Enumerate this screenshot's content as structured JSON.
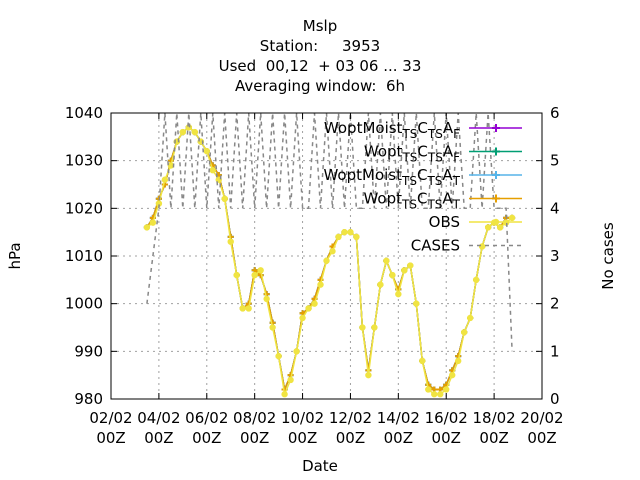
{
  "chart_data": {
    "type": "line",
    "title_lines": [
      "Mslp",
      "Station:     3953",
      "Used  00,12  + 03 06 ... 33",
      "Averaging window:  6h"
    ],
    "xlabel": "Date",
    "ylabel": "hPa",
    "y2label": "No cases",
    "ylim": [
      980,
      1040
    ],
    "y2lim": [
      0,
      6
    ],
    "xlim": [
      0,
      18
    ],
    "x_unit": "days since 02/02 00Z",
    "x_ticks": [
      {
        "x": 0,
        "l1": "02/02",
        "l2": "00Z"
      },
      {
        "x": 2,
        "l1": "04/02",
        "l2": "00Z"
      },
      {
        "x": 4,
        "l1": "06/02",
        "l2": "00Z"
      },
      {
        "x": 6,
        "l1": "08/02",
        "l2": "00Z"
      },
      {
        "x": 8,
        "l1": "10/02",
        "l2": "00Z"
      },
      {
        "x": 10,
        "l1": "12/02",
        "l2": "00Z"
      },
      {
        "x": 12,
        "l1": "14/02",
        "l2": "00Z"
      },
      {
        "x": 14,
        "l1": "16/02",
        "l2": "00Z"
      },
      {
        "x": 16,
        "l1": "18/02",
        "l2": "00Z"
      },
      {
        "x": 18,
        "l1": "20/02",
        "l2": "00Z"
      }
    ],
    "y_ticks": [
      980,
      990,
      1000,
      1010,
      1020,
      1030,
      1040
    ],
    "y2_ticks": [
      0,
      1,
      2,
      3,
      4,
      5,
      6
    ],
    "legend_position": "top-right",
    "x": [
      1.5,
      1.75,
      2.0,
      2.25,
      2.5,
      2.75,
      3.0,
      3.25,
      3.5,
      3.75,
      4.0,
      4.25,
      4.5,
      4.75,
      5.0,
      5.25,
      5.5,
      5.75,
      6.0,
      6.25,
      6.5,
      6.75,
      7.0,
      7.25,
      7.5,
      7.75,
      8.0,
      8.25,
      8.5,
      8.75,
      9.0,
      9.25,
      9.5,
      9.75,
      10.0,
      10.25,
      10.5,
      10.75,
      11.0,
      11.25,
      11.5,
      11.75,
      12.0,
      12.25,
      12.5,
      12.75,
      13.0,
      13.25,
      13.5,
      13.75,
      14.0,
      14.25,
      14.5,
      14.75,
      15.0,
      15.25,
      15.5,
      15.75,
      16.0,
      16.25,
      16.5,
      16.75
    ],
    "series": [
      {
        "name": "WoptMoist_{TS}C_{TS}A_F",
        "color": "#9400d3",
        "marker": "plus",
        "values": [
          1016,
          1018,
          1022,
          1025,
          1030,
          1034,
          1036,
          1037,
          1036,
          1034,
          1032,
          1029,
          1027,
          1022,
          1014,
          1006,
          999,
          1000,
          1007,
          1006,
          1002,
          996,
          989,
          982,
          985,
          990,
          998,
          999,
          1001,
          1005,
          1009,
          1012,
          1014,
          1015,
          1015,
          1014,
          995,
          986,
          995,
          1004,
          1009,
          1006,
          1003,
          1007,
          1008,
          1000,
          988,
          983,
          982,
          982,
          983,
          986,
          989,
          994,
          997,
          1005,
          1012,
          1016,
          1017,
          1016,
          1018,
          1018
        ]
      },
      {
        "name": "Wopt_{TS}C_{TS}A_F",
        "color": "#009e73",
        "marker": "plus",
        "values": [
          1016,
          1018,
          1022,
          1025,
          1030,
          1034,
          1036,
          1037,
          1036,
          1034,
          1032,
          1029,
          1027,
          1022,
          1014,
          1006,
          999,
          1000,
          1007,
          1006,
          1002,
          996,
          989,
          982,
          985,
          990,
          998,
          999,
          1001,
          1005,
          1009,
          1012,
          1014,
          1015,
          1015,
          1014,
          995,
          986,
          995,
          1004,
          1009,
          1006,
          1003,
          1007,
          1008,
          1000,
          988,
          983,
          982,
          982,
          983,
          986,
          989,
          994,
          997,
          1005,
          1012,
          1016,
          1017,
          1016,
          1018,
          1018
        ]
      },
      {
        "name": "WoptMoist_{TS}C_{TS}A_T",
        "color": "#56b4e9",
        "marker": "plus",
        "values": [
          1016,
          1018,
          1022,
          1025,
          1030,
          1034,
          1036,
          1037,
          1036,
          1034,
          1032,
          1029,
          1027,
          1022,
          1014,
          1006,
          999,
          1000,
          1007,
          1006,
          1002,
          996,
          989,
          982,
          985,
          990,
          998,
          999,
          1001,
          1005,
          1009,
          1012,
          1014,
          1015,
          1015,
          1014,
          995,
          986,
          995,
          1004,
          1009,
          1006,
          1003,
          1007,
          1008,
          1000,
          988,
          983,
          982,
          982,
          983,
          986,
          989,
          994,
          997,
          1005,
          1012,
          1016,
          1017,
          1016,
          1018,
          1018
        ]
      },
      {
        "name": "Wopt_{TS}C_{TS}A_T",
        "color": "#e69f00",
        "marker": "plus",
        "values": [
          1016,
          1018,
          1022,
          1025,
          1030,
          1034,
          1036,
          1037,
          1036,
          1034,
          1032,
          1029,
          1027,
          1022,
          1014,
          1006,
          999,
          1000,
          1007,
          1006,
          1002,
          996,
          989,
          982,
          985,
          990,
          998,
          999,
          1001,
          1005,
          1009,
          1012,
          1014,
          1015,
          1015,
          1014,
          995,
          986,
          995,
          1004,
          1009,
          1006,
          1003,
          1007,
          1008,
          1000,
          988,
          983,
          982,
          982,
          983,
          986,
          989,
          994,
          997,
          1005,
          1012,
          1016,
          1017,
          1016,
          1018,
          1018
        ]
      },
      {
        "name": "OBS",
        "color": "#f0e442",
        "marker": "dot",
        "values": [
          1016,
          1017,
          1021,
          1026,
          1029,
          1034,
          1036,
          1037,
          1036,
          1034,
          1032,
          1028,
          1026,
          1022,
          1013,
          1006,
          999,
          999,
          1006,
          1007,
          1001,
          995,
          989,
          981,
          984,
          990,
          997,
          999,
          1000,
          1004,
          1009,
          1011,
          1014,
          1015,
          1015,
          1014,
          995,
          985,
          995,
          1004,
          1009,
          1006,
          1002,
          1007,
          1008,
          1000,
          988,
          982,
          981,
          981,
          982,
          985,
          988,
          994,
          997,
          1005,
          1012,
          1016,
          1017,
          1016,
          1017,
          1018
        ]
      },
      {
        "name": "CASES",
        "color": "#888888",
        "marker": "none",
        "dashed": true,
        "axis": "y2",
        "x": [
          1.5,
          2.0,
          2.25,
          2.5,
          2.75,
          3.0,
          3.25,
          3.5,
          3.75,
          4.0,
          4.25,
          4.5,
          4.75,
          5.0,
          5.25,
          5.5,
          5.75,
          6.0,
          6.25,
          6.5,
          6.75,
          7.0,
          7.25,
          7.5,
          7.75,
          8.0,
          8.25,
          8.5,
          8.75,
          9.0,
          9.25,
          9.5,
          9.75,
          10.0,
          10.25,
          10.5,
          10.75,
          11.0,
          11.25,
          11.5,
          11.75,
          12.0,
          12.25,
          12.5,
          12.75,
          13.0,
          13.25,
          13.5,
          13.75,
          14.0,
          14.25,
          14.5,
          14.75,
          15.0,
          15.25,
          15.5,
          15.75,
          16.0,
          16.25,
          16.5,
          16.75
        ],
        "values": [
          2,
          4,
          6,
          4,
          6,
          4,
          6,
          4,
          6,
          4,
          6,
          4,
          6,
          4,
          6,
          4,
          6,
          4,
          6,
          4,
          6,
          4,
          6,
          4,
          6,
          4,
          4,
          6,
          4,
          6,
          4,
          6,
          4,
          6,
          4,
          4,
          6,
          4,
          6,
          4,
          6,
          4,
          6,
          4,
          6,
          4,
          4,
          6,
          4,
          6,
          4,
          6,
          4,
          4,
          6,
          4,
          6,
          4,
          4,
          4,
          1
        ]
      }
    ]
  }
}
